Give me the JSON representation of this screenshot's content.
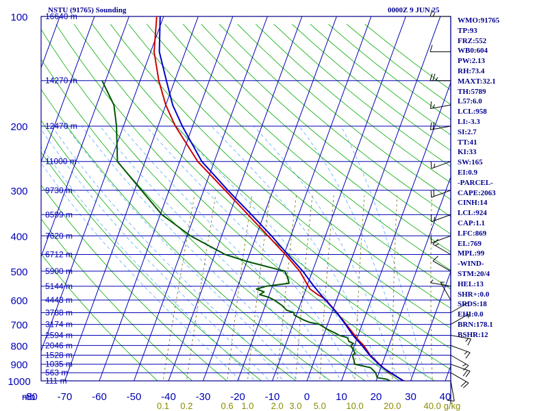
{
  "header": {
    "station": "NSTU (91765) Sounding",
    "time": "0000Z  9 JUN 25"
  },
  "colors": {
    "frame": "#00008b",
    "isobar": "#0000b4",
    "isotherm": "#0000b4",
    "dry_adiabat": "#00aa00",
    "moist_adiabat": "#55aaff",
    "mixing_ratio": "#666600",
    "temperature": "#0000cc",
    "dewpoint": "#005500",
    "parcel": "#cc0000",
    "wind_barb": "#000000",
    "label": "#0000b4",
    "mixing_label": "#8b8b00"
  },
  "indices": [
    "WMO:91765",
    "TP:93",
    "FRZ:552",
    "WB0:604",
    "PW:2.13",
    "RH:73.4",
    "MAXT:32.1",
    "TH:5789",
    "L57:6.0",
    "LCL:958",
    "LI:-3.3",
    "SI:2.7",
    "TT:41",
    "KI:33",
    "SW:165",
    "EI:0.9",
    "-PARCEL-",
    "CAPE:2063",
    "CINH:14",
    "LCL:924",
    "CAP:1.1",
    "LFC:869",
    "EL:769",
    "MPL:99",
    "-WIND-",
    "STM:20/4",
    "HEL:13",
    "SHR+:0.0",
    "SRDS:18",
    "EHI:0.0",
    "BRN:178.1",
    "BSHR:12"
  ],
  "chart_data": {
    "type": "skew-t",
    "title": "NSTU (91765) Sounding",
    "xlabel": "",
    "ylabel": "mb",
    "x_ticks": [
      "-80",
      "-70",
      "-60",
      "-50",
      "-40",
      "-30",
      "-20",
      "-10",
      "0",
      "10",
      "20",
      "30",
      "40"
    ],
    "pressure_ticks": [
      "100",
      "200",
      "300",
      "400",
      "500",
      "600",
      "700",
      "800",
      "900",
      "1000"
    ],
    "pressure_levels": [
      100,
      150,
      200,
      250,
      300,
      350,
      400,
      450,
      500,
      550,
      600,
      650,
      700,
      750,
      800,
      850,
      900,
      950,
      1000
    ],
    "height_labels": [
      {
        "p": 100,
        "label": "16640 m"
      },
      {
        "p": 150,
        "label": "14270 m"
      },
      {
        "p": 200,
        "label": "12470 m"
      },
      {
        "p": 250,
        "label": "11000 m"
      },
      {
        "p": 300,
        "label": "9730 m"
      },
      {
        "p": 350,
        "label": "8599 m"
      },
      {
        "p": 400,
        "label": "7620 m"
      },
      {
        "p": 450,
        "label": "6712 m"
      },
      {
        "p": 500,
        "label": "5900 m"
      },
      {
        "p": 550,
        "label": "5144 m"
      },
      {
        "p": 600,
        "label": "4443 m"
      },
      {
        "p": 650,
        "label": "3788 m"
      },
      {
        "p": 700,
        "label": "3174 m"
      },
      {
        "p": 750,
        "label": "2594 m"
      },
      {
        "p": 800,
        "label": "2046 m"
      },
      {
        "p": 850,
        "label": "1528 m"
      },
      {
        "p": 900,
        "label": "1035 m"
      },
      {
        "p": 950,
        "label": "563 m"
      },
      {
        "p": 1000,
        "label": "111 m"
      }
    ],
    "mixing_ratio_labels": [
      "0.1",
      "0.2",
      "0.6",
      "1.0",
      "2.0",
      "3.0",
      "5.0",
      "10.0",
      "20.0",
      "40.0",
      "g/kg"
    ],
    "mixing_ratio_values": [
      0.1,
      0.2,
      0.6,
      1.0,
      2.0,
      3.0,
      5.0,
      10.0,
      20.0,
      40.0
    ],
    "temperature_c": [
      [
        1005,
        29.0
      ],
      [
        1000,
        27.8
      ],
      [
        950,
        23.4
      ],
      [
        925,
        21.0
      ],
      [
        900,
        19.0
      ],
      [
        850,
        15.4
      ],
      [
        800,
        12.2
      ],
      [
        750,
        8.5
      ],
      [
        700,
        5.2
      ],
      [
        650,
        1.4
      ],
      [
        600,
        -3.2
      ],
      [
        550,
        -8.0
      ],
      [
        500,
        -12.8
      ],
      [
        450,
        -18.9
      ],
      [
        400,
        -25.6
      ],
      [
        350,
        -33.6
      ],
      [
        300,
        -43.0
      ],
      [
        250,
        -53.6
      ],
      [
        200,
        -63.0
      ],
      [
        175,
        -68.0
      ],
      [
        150,
        -72.4
      ],
      [
        125,
        -77.5
      ],
      [
        100,
        -81.0
      ]
    ],
    "dewpoint_c": [
      [
        1005,
        25.0
      ],
      [
        1000,
        24.0
      ],
      [
        990,
        23.0
      ],
      [
        980,
        20.0
      ],
      [
        950,
        19.0
      ],
      [
        920,
        17.0
      ],
      [
        900,
        12.0
      ],
      [
        880,
        11.5
      ],
      [
        860,
        10.8
      ],
      [
        850,
        10.5
      ],
      [
        840,
        11.0
      ],
      [
        820,
        10.0
      ],
      [
        800,
        9.0
      ],
      [
        790,
        9.5
      ],
      [
        780,
        8.0
      ],
      [
        770,
        7.6
      ],
      [
        760,
        7.0
      ],
      [
        750,
        4.5
      ],
      [
        740,
        3.2
      ],
      [
        720,
        0.2
      ],
      [
        700,
        -2.3
      ],
      [
        690,
        -5.6
      ],
      [
        680,
        -7.5
      ],
      [
        660,
        -10.6
      ],
      [
        650,
        -11.0
      ],
      [
        640,
        -13.3
      ],
      [
        620,
        -15.3
      ],
      [
        600,
        -18.0
      ],
      [
        590,
        -19.8
      ],
      [
        580,
        -22.8
      ],
      [
        570,
        -21.8
      ],
      [
        560,
        -24.3
      ],
      [
        550,
        -21.8
      ],
      [
        540,
        -15.5
      ],
      [
        520,
        -16.5
      ],
      [
        500,
        -18.0
      ],
      [
        490,
        -22.0
      ],
      [
        470,
        -30.0
      ],
      [
        450,
        -37.0
      ],
      [
        400,
        -49.0
      ],
      [
        350,
        -59.5
      ],
      [
        300,
        -68.0
      ],
      [
        250,
        -78.0
      ],
      [
        200,
        -82.0
      ],
      [
        175,
        -85.0
      ],
      [
        150,
        -91.0
      ]
    ],
    "parcel_c": [
      [
        1005,
        29.5
      ],
      [
        1000,
        28.0
      ],
      [
        958,
        24.0
      ],
      [
        950,
        23.0
      ],
      [
        924,
        21.0
      ],
      [
        900,
        19.2
      ],
      [
        869,
        17.0
      ],
      [
        850,
        15.6
      ],
      [
        800,
        12.7
      ],
      [
        769,
        10.3
      ],
      [
        750,
        9.0
      ],
      [
        700,
        5.4
      ],
      [
        650,
        1.5
      ],
      [
        600,
        -3.0
      ],
      [
        590,
        -4.3
      ],
      [
        580,
        -6.0
      ],
      [
        560,
        -8.8
      ],
      [
        550,
        -9.6
      ],
      [
        500,
        -13.7
      ],
      [
        450,
        -19.6
      ],
      [
        400,
        -26.6
      ],
      [
        350,
        -34.6
      ],
      [
        300,
        -43.8
      ],
      [
        250,
        -54.8
      ],
      [
        200,
        -65.0
      ],
      [
        175,
        -70.0
      ],
      [
        150,
        -74.6
      ],
      [
        125,
        -79.0
      ],
      [
        100,
        -82.0
      ]
    ],
    "wind_barbs": [
      {
        "p": 1000,
        "dir": 170,
        "spd": 10
      },
      {
        "p": 950,
        "dir": 120,
        "spd": 20
      },
      {
        "p": 900,
        "dir": 110,
        "spd": 20
      },
      {
        "p": 850,
        "dir": 120,
        "spd": 15
      },
      {
        "p": 800,
        "dir": 110,
        "spd": 15
      },
      {
        "p": 750,
        "dir": 100,
        "spd": 15
      },
      {
        "p": 700,
        "dir": 60,
        "spd": 5
      },
      {
        "p": 650,
        "dir": 60,
        "spd": 5
      },
      {
        "p": 600,
        "dir": 330,
        "spd": 5
      },
      {
        "p": 550,
        "dir": 280,
        "spd": 5
      },
      {
        "p": 500,
        "dir": 300,
        "spd": 10
      },
      {
        "p": 450,
        "dir": 300,
        "spd": 15
      },
      {
        "p": 400,
        "dir": 250,
        "spd": 10
      },
      {
        "p": 350,
        "dir": 250,
        "spd": 15
      },
      {
        "p": 300,
        "dir": 250,
        "spd": 20
      },
      {
        "p": 250,
        "dir": 250,
        "spd": 15
      },
      {
        "p": 200,
        "dir": 260,
        "spd": 20
      },
      {
        "p": 175,
        "dir": 260,
        "spd": 15
      },
      {
        "p": 150,
        "dir": 270,
        "spd": 25
      },
      {
        "p": 125,
        "dir": 270,
        "spd": 10
      },
      {
        "p": 100,
        "dir": 270,
        "spd": 15
      }
    ]
  }
}
